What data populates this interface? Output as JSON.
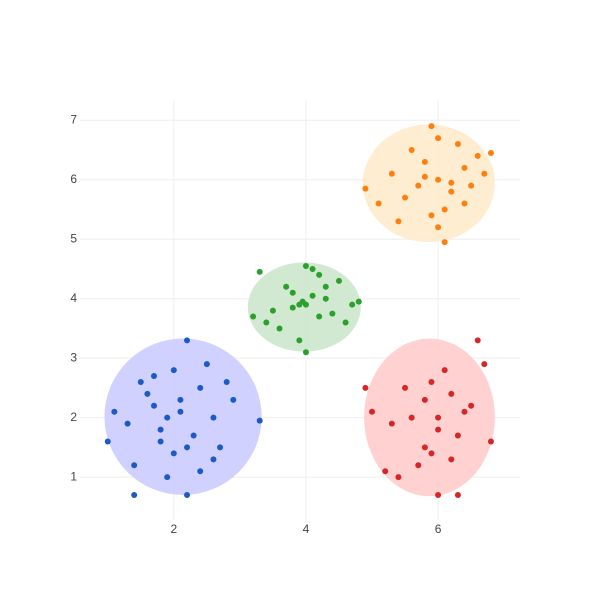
{
  "chart_data": {
    "type": "scatter",
    "xlim": [
      0.58,
      7.24
    ],
    "ylim": [
      0.28,
      7.34
    ],
    "xticks": [
      2,
      4,
      6
    ],
    "yticks": [
      1,
      2,
      3,
      4,
      5,
      6,
      7
    ],
    "grid": true,
    "shapes": [
      {
        "type": "circle",
        "x0": 0.95,
        "x1": 3.33,
        "y0": 0.7,
        "y1": 3.33,
        "fillcolor": "#ccccff"
      },
      {
        "type": "circle",
        "x0": 3.12,
        "x1": 4.83,
        "y0": 3.11,
        "y1": 4.61,
        "fillcolor": "#cce6cc"
      },
      {
        "type": "circle",
        "x0": 4.86,
        "x1": 6.86,
        "y0": 4.95,
        "y1": 6.93,
        "fillcolor": "#ffebcc"
      },
      {
        "type": "circle",
        "x0": 4.88,
        "x1": 6.86,
        "y0": 0.68,
        "y1": 3.33,
        "fillcolor": "#ffcccc"
      }
    ],
    "series": [
      {
        "color": "#1a5bc8",
        "x": [
          2.1,
          1.8,
          2.4,
          1.5,
          2.0,
          2.6,
          1.7,
          2.2,
          1.3,
          2.9,
          1.9,
          2.3,
          1.6,
          2.7,
          2.0,
          1.4,
          2.5,
          1.1,
          2.2,
          3.3,
          1.8,
          2.1,
          2.4,
          1.0,
          1.9,
          2.8,
          1.4,
          2.2,
          1.7,
          2.6
        ],
        "y": [
          2.1,
          1.8,
          2.5,
          2.6,
          1.4,
          2.0,
          2.2,
          3.3,
          1.9,
          2.3,
          1.0,
          1.7,
          2.4,
          1.5,
          2.8,
          1.2,
          2.9,
          2.1,
          0.7,
          1.95,
          1.6,
          2.3,
          1.1,
          1.6,
          2.0,
          2.6,
          0.7,
          1.5,
          2.7,
          1.3
        ]
      },
      {
        "color": "#2ca02c",
        "x": [
          4.0,
          3.8,
          4.2,
          4.5,
          3.5,
          4.1,
          3.9,
          4.3,
          3.7,
          4.6,
          3.3,
          4.0,
          4.8,
          3.6,
          4.2,
          3.9,
          4.4,
          3.4,
          4.1,
          3.8,
          4.0,
          4.7,
          3.2,
          4.3,
          3.95
        ],
        "y": [
          3.9,
          4.1,
          3.7,
          4.3,
          3.8,
          4.5,
          3.3,
          4.0,
          4.2,
          3.6,
          4.45,
          3.1,
          3.95,
          3.5,
          4.4,
          3.9,
          3.75,
          3.6,
          4.05,
          3.85,
          4.55,
          3.9,
          3.7,
          4.2,
          3.95
        ]
      },
      {
        "color": "#ff7f0e",
        "x": [
          6.0,
          5.8,
          6.2,
          5.5,
          6.4,
          5.9,
          6.1,
          5.3,
          6.6,
          5.7,
          6.0,
          6.3,
          5.1,
          6.8,
          5.6,
          6.2,
          5.9,
          6.5,
          4.9,
          6.0,
          5.4,
          6.7,
          6.1,
          5.8,
          6.4
        ],
        "y": [
          6.0,
          6.3,
          5.8,
          5.7,
          6.2,
          6.9,
          5.5,
          6.1,
          6.4,
          5.9,
          5.2,
          6.6,
          5.6,
          6.45,
          6.5,
          5.95,
          5.4,
          5.9,
          5.85,
          6.7,
          5.3,
          6.1,
          4.95,
          6.05,
          5.6
        ]
      },
      {
        "color": "#d62728",
        "x": [
          6.0,
          5.8,
          6.3,
          5.5,
          6.4,
          5.9,
          6.1,
          5.3,
          6.6,
          5.7,
          6.0,
          6.2,
          5.0,
          6.8,
          5.6,
          6.2,
          5.9,
          6.5,
          4.9,
          6.0,
          5.4,
          6.7,
          6.3,
          5.8,
          5.2
        ],
        "y": [
          2.0,
          2.3,
          1.7,
          2.5,
          2.1,
          1.4,
          2.8,
          1.9,
          3.3,
          1.2,
          0.7,
          2.4,
          2.1,
          1.6,
          2.0,
          1.3,
          2.6,
          2.2,
          2.5,
          1.8,
          1.0,
          2.9,
          0.7,
          1.5,
          1.1
        ]
      }
    ]
  }
}
